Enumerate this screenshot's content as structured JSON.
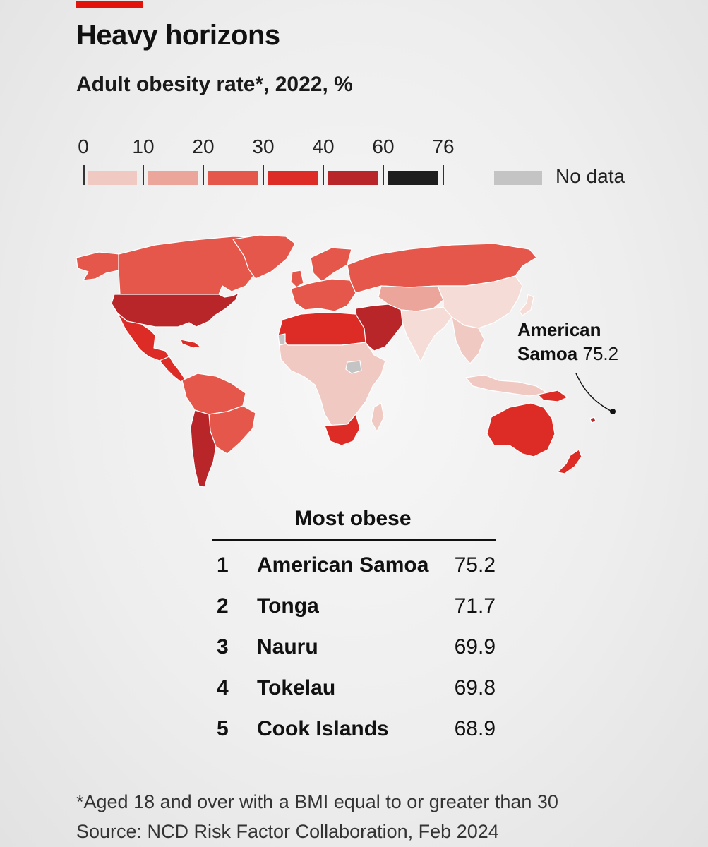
{
  "header": {
    "title": "Heavy horizons",
    "subtitle": "Adult obesity rate*, 2022, %"
  },
  "legend": {
    "ticks": [
      "0",
      "10",
      "20",
      "30",
      "40",
      "60",
      "76"
    ],
    "swatch_colors": [
      "#f0c9c2",
      "#eba59a",
      "#e5574b",
      "#dd2c26",
      "#b8262a",
      "#1e1e1e"
    ],
    "no_data_label": "No data",
    "no_data_color": "#c4c4c4"
  },
  "map": {
    "annotation": {
      "name_line1": "American",
      "name_line2": "Samoa",
      "value": "75.2"
    },
    "colors": {
      "north_america": "#e5574b",
      "usa": "#b8262a",
      "central_america": "#dd2c26",
      "south_america": "#e5574b",
      "europe": "#e5574b",
      "russia": "#e5574b",
      "middle_east": "#b8262a",
      "north_africa": "#dd2c26",
      "sub_saharan_africa": "#f0c9c2",
      "south_africa": "#dd2c26",
      "central_asia": "#eba59a",
      "china": "#f5dcd6",
      "india": "#f5dcd6",
      "southeast_asia": "#f0c9c2",
      "japan": "#f5dcd6",
      "australia": "#dd2c26",
      "new_zealand": "#dd2c26",
      "greenland": "#e5574b",
      "no_data": "#c4c4c4",
      "pacific_islands": "#b8262a"
    }
  },
  "table": {
    "title": "Most obese",
    "rows": [
      {
        "rank": "1",
        "name": "American Samoa",
        "value": "75.2"
      },
      {
        "rank": "2",
        "name": "Tonga",
        "value": "71.7"
      },
      {
        "rank": "3",
        "name": "Nauru",
        "value": "69.9"
      },
      {
        "rank": "4",
        "name": "Tokelau",
        "value": "69.8"
      },
      {
        "rank": "5",
        "name": "Cook Islands",
        "value": "68.9"
      }
    ]
  },
  "footnote": {
    "line1": "*Aged 18 and over with a BMI equal to or greater than 30",
    "line2": "Source: NCD Risk Factor Collaboration, Feb 2024"
  }
}
